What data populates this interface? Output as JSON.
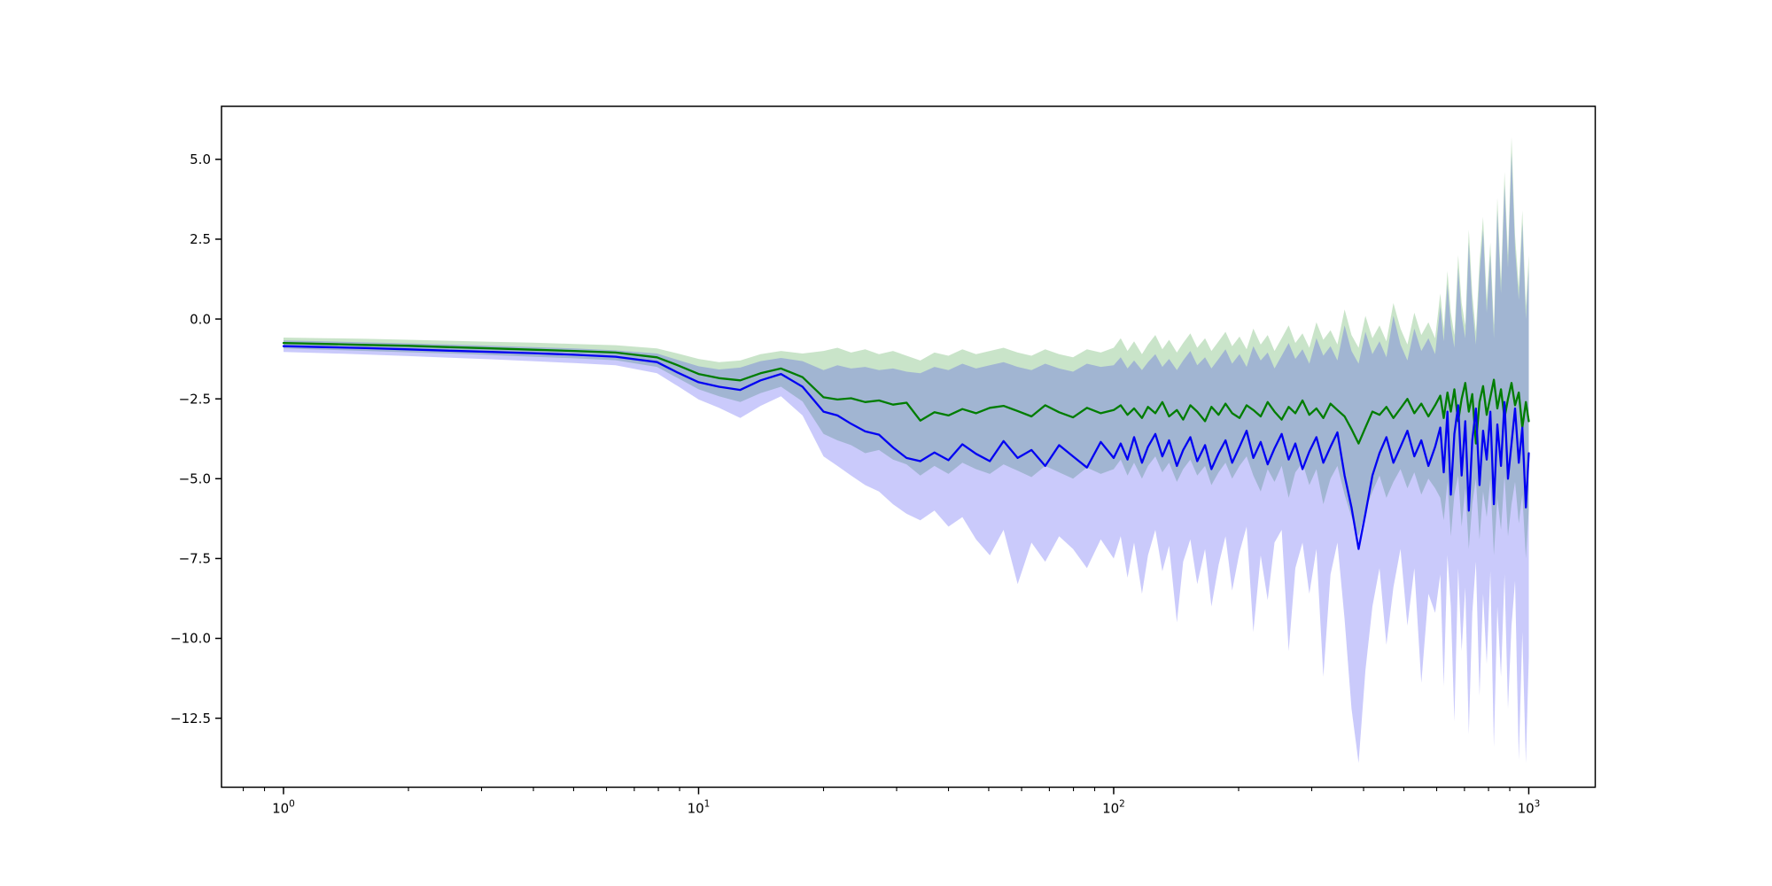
{
  "figure": {
    "background": "#ffffff",
    "title": "",
    "legend": null
  },
  "chart_data": {
    "type": "line",
    "title": "",
    "xlabel": "",
    "ylabel": "",
    "x_scale": "log",
    "grid": false,
    "xlim": [
      0.709,
      1446
    ],
    "ylim": [
      -14.66,
      6.66
    ],
    "y_ticks": [
      {
        "v": 5.0,
        "label": "5.0"
      },
      {
        "v": 2.5,
        "label": "2.5"
      },
      {
        "v": 0.0,
        "label": "0.0"
      },
      {
        "v": -2.5,
        "label": "−2.5"
      },
      {
        "v": -5.0,
        "label": "−5.0"
      },
      {
        "v": -7.5,
        "label": "−7.5"
      },
      {
        "v": -10.0,
        "label": "−10.0"
      },
      {
        "v": -12.5,
        "label": "−12.5"
      }
    ],
    "x_ticks": [
      {
        "v": 1,
        "base": "10",
        "exp": "0"
      },
      {
        "v": 10,
        "base": "10",
        "exp": "1"
      },
      {
        "v": 100,
        "base": "10",
        "exp": "2"
      },
      {
        "v": 1000,
        "base": "10",
        "exp": "3"
      }
    ],
    "x_minor_decades": [
      -1,
      0,
      1,
      2
    ],
    "axis_color": "#000000",
    "x": [
      1,
      1.26,
      1.58,
      2,
      2.51,
      3.16,
      3.98,
      5.01,
      6.31,
      7.94,
      8.91,
      10,
      11.2,
      12.6,
      14.1,
      15.8,
      17.8,
      20,
      21.6,
      23.3,
      25.2,
      27.2,
      29.4,
      31.7,
      34.2,
      37,
      40,
      43.2,
      46.6,
      50.3,
      54.3,
      58.7,
      63.4,
      68.4,
      73.9,
      79.8,
      86.2,
      93.1,
      100,
      104,
      108,
      112,
      117,
      121,
      126,
      131,
      136,
      142,
      147,
      153,
      159,
      166,
      172,
      179,
      186,
      193,
      201,
      209,
      217,
      226,
      235,
      244,
      254,
      264,
      274,
      285,
      296,
      308,
      320,
      333,
      346,
      360,
      374,
      389,
      404,
      420,
      437,
      454,
      472,
      491,
      510,
      530,
      551,
      573,
      595,
      612,
      624,
      637,
      649,
      662,
      676,
      689,
      703,
      717,
      731,
      746,
      761,
      776,
      792,
      808,
      824,
      840,
      857,
      874,
      891,
      909,
      927,
      946,
      965,
      984,
      1000
    ],
    "series": [
      {
        "id": "green",
        "line_color": "#007d00",
        "band_color": "rgba(0,128,0,0.21)",
        "mean": [
          -0.75,
          -0.78,
          -0.81,
          -0.84,
          -0.88,
          -0.92,
          -0.96,
          -1.0,
          -1.05,
          -1.2,
          -1.45,
          -1.72,
          -1.85,
          -1.92,
          -1.7,
          -1.55,
          -1.82,
          -2.45,
          -2.52,
          -2.48,
          -2.6,
          -2.55,
          -2.68,
          -2.62,
          -3.18,
          -2.92,
          -3.02,
          -2.82,
          -2.95,
          -2.78,
          -2.72,
          -2.88,
          -3.05,
          -2.7,
          -2.92,
          -3.08,
          -2.78,
          -2.95,
          -2.85,
          -2.7,
          -3.0,
          -2.8,
          -3.1,
          -2.75,
          -2.95,
          -2.6,
          -3.05,
          -2.85,
          -3.15,
          -2.7,
          -2.9,
          -3.2,
          -2.75,
          -3.0,
          -2.65,
          -2.95,
          -3.1,
          -2.7,
          -2.85,
          -3.05,
          -2.6,
          -2.9,
          -3.15,
          -2.75,
          -2.95,
          -2.55,
          -3.0,
          -2.8,
          -3.1,
          -2.65,
          -2.85,
          -3.05,
          -3.45,
          -3.9,
          -3.4,
          -2.9,
          -3.0,
          -2.75,
          -3.1,
          -2.8,
          -2.5,
          -2.95,
          -2.65,
          -3.05,
          -2.7,
          -2.4,
          -3.1,
          -2.3,
          -2.9,
          -2.2,
          -3.2,
          -2.5,
          -2.0,
          -2.9,
          -2.35,
          -3.9,
          -2.6,
          -2.1,
          -3.0,
          -2.45,
          -1.9,
          -2.8,
          -2.2,
          -3.1,
          -2.5,
          -2.0,
          -2.7,
          -2.3,
          -3.4,
          -2.6,
          -3.2
        ],
        "hi": [
          -0.58,
          -0.6,
          -0.62,
          -0.65,
          -0.68,
          -0.71,
          -0.74,
          -0.78,
          -0.82,
          -0.92,
          -1.08,
          -1.25,
          -1.35,
          -1.3,
          -1.1,
          -1.0,
          -1.08,
          -1.0,
          -0.9,
          -1.05,
          -0.95,
          -1.1,
          -1.0,
          -1.15,
          -1.3,
          -1.05,
          -1.15,
          -0.95,
          -1.1,
          -1.0,
          -0.9,
          -1.05,
          -1.15,
          -0.95,
          -1.1,
          -1.2,
          -0.95,
          -1.05,
          -0.9,
          -0.6,
          -1.0,
          -0.7,
          -1.1,
          -0.8,
          -0.5,
          -0.95,
          -0.65,
          -1.05,
          -0.75,
          -0.45,
          -0.9,
          -0.6,
          -1.0,
          -0.7,
          -0.4,
          -0.85,
          -0.55,
          -0.95,
          -0.3,
          -0.8,
          -0.5,
          -1.0,
          -0.6,
          -0.2,
          -0.75,
          -0.45,
          -0.9,
          -0.1,
          -0.65,
          -0.35,
          -0.8,
          0.3,
          -0.5,
          -0.9,
          0.1,
          -0.6,
          -0.2,
          -0.7,
          0.5,
          -0.3,
          -0.8,
          0.2,
          -0.5,
          -0.1,
          -0.6,
          0.8,
          -0.3,
          1.5,
          0.2,
          -0.5,
          2.0,
          0.5,
          -0.2,
          2.8,
          0.8,
          -0.4,
          1.8,
          3.2,
          0.6,
          2.4,
          -0.2,
          3.8,
          1.2,
          4.6,
          2.0,
          5.7,
          2.6,
          1.0,
          3.4,
          0.4,
          2.0
        ],
        "lo": [
          -0.92,
          -0.96,
          -1.0,
          -1.04,
          -1.08,
          -1.13,
          -1.18,
          -1.23,
          -1.29,
          -1.5,
          -1.85,
          -2.2,
          -2.42,
          -2.6,
          -2.32,
          -2.12,
          -2.58,
          -3.6,
          -3.8,
          -3.95,
          -4.2,
          -4.1,
          -4.4,
          -4.55,
          -4.9,
          -4.6,
          -4.85,
          -4.5,
          -4.7,
          -4.85,
          -4.55,
          -4.75,
          -4.95,
          -4.6,
          -4.8,
          -5.0,
          -4.65,
          -4.85,
          -4.7,
          -4.4,
          -4.9,
          -4.5,
          -5.0,
          -4.6,
          -4.3,
          -4.8,
          -4.5,
          -5.1,
          -4.7,
          -4.4,
          -4.9,
          -4.6,
          -5.2,
          -4.8,
          -4.5,
          -5.0,
          -4.6,
          -4.3,
          -4.9,
          -5.4,
          -4.7,
          -5.1,
          -4.6,
          -5.6,
          -4.8,
          -4.5,
          -5.2,
          -4.7,
          -5.8,
          -5.0,
          -4.6,
          -5.5,
          -6.2,
          -6.8,
          -6.0,
          -5.4,
          -4.9,
          -5.6,
          -5.1,
          -4.7,
          -5.3,
          -4.8,
          -5.5,
          -5.0,
          -5.3,
          -5.6,
          -6.3,
          -5.1,
          -6.8,
          -5.5,
          -4.9,
          -6.5,
          -5.3,
          -7.2,
          -5.8,
          -5.0,
          -6.9,
          -5.4,
          -6.2,
          -5.0,
          -7.4,
          -5.6,
          -6.6,
          -4.9,
          -6.8,
          -5.8,
          -5.1,
          -6.4,
          -5.5,
          -7.5,
          -6.0
        ]
      },
      {
        "id": "blue",
        "line_color": "#0202f2",
        "band_color": "rgba(35,35,240,0.24)",
        "mean": [
          -0.85,
          -0.88,
          -0.91,
          -0.95,
          -0.99,
          -1.03,
          -1.07,
          -1.12,
          -1.18,
          -1.35,
          -1.68,
          -1.98,
          -2.12,
          -2.22,
          -1.92,
          -1.72,
          -2.12,
          -2.9,
          -3.02,
          -3.28,
          -3.52,
          -3.62,
          -4.02,
          -4.35,
          -4.45,
          -4.18,
          -4.42,
          -3.92,
          -4.22,
          -4.45,
          -3.82,
          -4.35,
          -4.1,
          -4.6,
          -3.95,
          -4.3,
          -4.65,
          -3.85,
          -4.35,
          -3.9,
          -4.4,
          -3.7,
          -4.5,
          -4.0,
          -3.6,
          -4.3,
          -3.8,
          -4.6,
          -4.1,
          -3.7,
          -4.45,
          -3.95,
          -4.7,
          -4.2,
          -3.8,
          -4.5,
          -4.0,
          -3.5,
          -4.35,
          -3.85,
          -4.55,
          -4.05,
          -3.6,
          -4.4,
          -3.9,
          -4.7,
          -4.15,
          -3.7,
          -4.5,
          -4.0,
          -3.55,
          -4.9,
          -5.9,
          -7.2,
          -6.1,
          -4.9,
          -4.2,
          -3.7,
          -4.5,
          -4.0,
          -3.5,
          -4.3,
          -3.8,
          -4.6,
          -4.0,
          -3.4,
          -4.8,
          -2.9,
          -5.5,
          -3.6,
          -2.7,
          -4.9,
          -3.2,
          -6.0,
          -3.8,
          -2.8,
          -5.2,
          -3.5,
          -4.4,
          -2.9,
          -5.8,
          -3.3,
          -4.6,
          -2.6,
          -5.0,
          -3.9,
          -2.8,
          -4.5,
          -3.4,
          -5.9,
          -4.2
        ],
        "hi": [
          -0.67,
          -0.7,
          -0.73,
          -0.76,
          -0.8,
          -0.84,
          -0.88,
          -0.92,
          -0.98,
          -1.08,
          -1.28,
          -1.48,
          -1.58,
          -1.52,
          -1.32,
          -1.22,
          -1.32,
          -1.6,
          -1.45,
          -1.55,
          -1.5,
          -1.6,
          -1.55,
          -1.65,
          -1.7,
          -1.5,
          -1.6,
          -1.4,
          -1.55,
          -1.45,
          -1.35,
          -1.5,
          -1.6,
          -1.4,
          -1.55,
          -1.65,
          -1.4,
          -1.5,
          -1.45,
          -1.2,
          -1.55,
          -1.3,
          -1.6,
          -1.35,
          -1.1,
          -1.5,
          -1.25,
          -1.6,
          -1.3,
          -1.0,
          -1.45,
          -1.2,
          -1.55,
          -1.25,
          -0.95,
          -1.4,
          -1.1,
          -1.5,
          -0.85,
          -1.3,
          -1.05,
          -1.55,
          -1.15,
          -0.75,
          -1.25,
          -0.95,
          -1.4,
          -0.6,
          -1.15,
          -0.85,
          -1.3,
          -0.2,
          -1.0,
          -1.4,
          -0.4,
          -1.1,
          -0.7,
          -1.2,
          0.1,
          -0.8,
          -1.3,
          -0.3,
          -1.0,
          -0.6,
          -1.1,
          0.4,
          -0.7,
          1.1,
          -0.2,
          -0.9,
          1.6,
          0.1,
          -0.6,
          2.4,
          0.4,
          -0.8,
          1.4,
          2.8,
          0.2,
          2.0,
          -0.6,
          3.4,
          0.8,
          4.2,
          1.6,
          5.2,
          2.2,
          0.6,
          3.0,
          0.0,
          1.6
        ],
        "lo": [
          -1.03,
          -1.07,
          -1.11,
          -1.16,
          -1.21,
          -1.26,
          -1.32,
          -1.38,
          -1.45,
          -1.7,
          -2.1,
          -2.52,
          -2.78,
          -3.1,
          -2.72,
          -2.42,
          -3.02,
          -4.3,
          -4.6,
          -4.9,
          -5.2,
          -5.4,
          -5.8,
          -6.1,
          -6.3,
          -6.0,
          -6.5,
          -6.2,
          -6.9,
          -7.4,
          -6.6,
          -8.3,
          -7.0,
          -7.6,
          -6.8,
          -7.2,
          -7.8,
          -6.9,
          -7.5,
          -6.8,
          -8.1,
          -7.0,
          -8.6,
          -7.4,
          -6.6,
          -7.9,
          -7.1,
          -9.5,
          -7.6,
          -6.9,
          -8.3,
          -7.2,
          -9.0,
          -7.7,
          -6.8,
          -8.5,
          -7.3,
          -6.5,
          -9.8,
          -7.4,
          -8.8,
          -7.0,
          -6.6,
          -10.4,
          -7.8,
          -7.0,
          -8.6,
          -7.2,
          -11.2,
          -8.0,
          -7.0,
          -9.4,
          -12.2,
          -13.9,
          -11.0,
          -9.0,
          -7.8,
          -10.2,
          -8.4,
          -7.2,
          -9.6,
          -7.8,
          -11.4,
          -8.6,
          -9.2,
          -8.0,
          -11.5,
          -7.4,
          -9.0,
          -12.6,
          -7.8,
          -10.4,
          -8.4,
          -13.0,
          -9.2,
          -7.6,
          -11.8,
          -8.6,
          -10.8,
          -7.9,
          -13.4,
          -9.0,
          -11.2,
          -8.0,
          -12.2,
          -9.6,
          -8.2,
          -13.8,
          -9.8,
          -13.9,
          -10.6
        ]
      }
    ]
  }
}
